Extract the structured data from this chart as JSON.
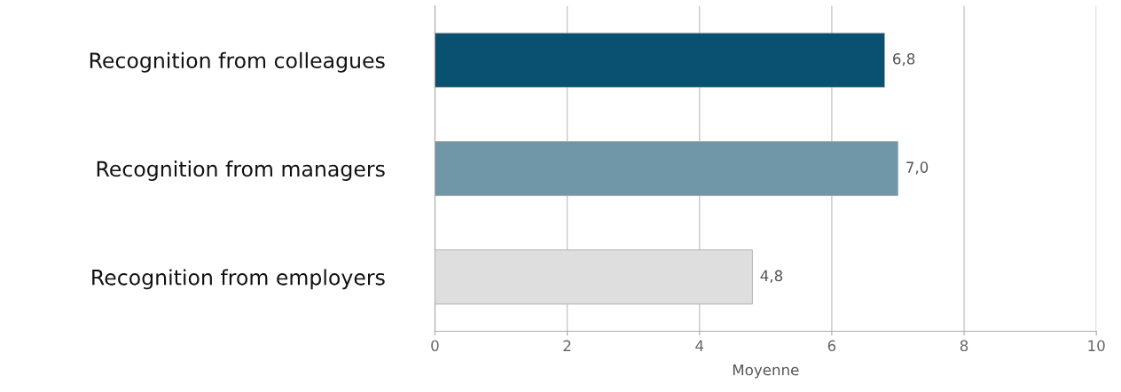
{
  "chart_data": {
    "type": "bar",
    "orientation": "horizontal",
    "xlabel": "Moyenne",
    "categories": [
      "Recognition from colleagues",
      "Recognition from managers",
      "Recognition from employers"
    ],
    "values": [
      6.8,
      7.0,
      4.8
    ],
    "colors": [
      "#0a5070",
      "#7097a8",
      "#dedede"
    ],
    "value_labels": [
      "6,8",
      "7,0",
      "4,8"
    ],
    "xlim": [
      0,
      10
    ],
    "xticks": [
      0,
      2,
      4,
      6,
      8,
      10
    ],
    "grid": "x",
    "legend": false
  }
}
